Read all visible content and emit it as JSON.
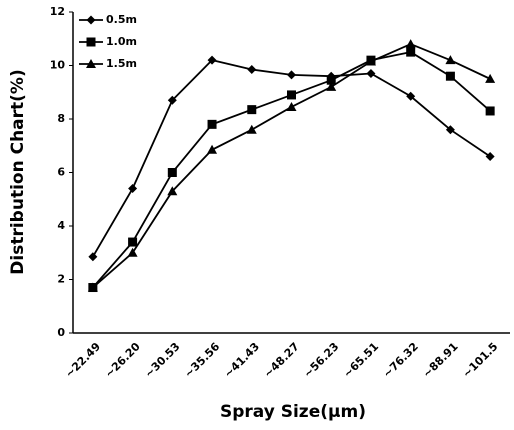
{
  "chart_data": {
    "type": "line",
    "xlabel": "Spray Size(μm)",
    "ylabel": "Distribution Chart(%)",
    "categories": [
      "~22.49",
      "~26.20",
      "~30.53",
      "~35.56",
      "~41.43",
      "~48.27",
      "~56.23",
      "~65.51",
      "~76.32",
      "~88.91",
      "~101.5"
    ],
    "series": [
      {
        "name": "0.5m",
        "color": "#000000",
        "marker": "diamond",
        "values": [
          2.85,
          5.4,
          8.7,
          10.2,
          9.85,
          9.65,
          9.6,
          9.7,
          8.85,
          7.6,
          6.6
        ]
      },
      {
        "name": "1.0m",
        "color": "#000000",
        "marker": "square",
        "values": [
          1.7,
          3.4,
          6.0,
          7.8,
          8.35,
          8.9,
          9.45,
          10.2,
          10.5,
          9.6,
          8.3
        ]
      },
      {
        "name": "1.5m",
        "color": "#000000",
        "marker": "triangle",
        "values": [
          1.7,
          3.0,
          5.3,
          6.85,
          7.6,
          8.45,
          9.2,
          10.15,
          10.8,
          10.2,
          9.5
        ]
      }
    ],
    "ylim": [
      0,
      12
    ],
    "yticks": [
      0,
      2,
      4,
      6,
      8,
      10,
      12
    ],
    "legend": "upper left"
  }
}
